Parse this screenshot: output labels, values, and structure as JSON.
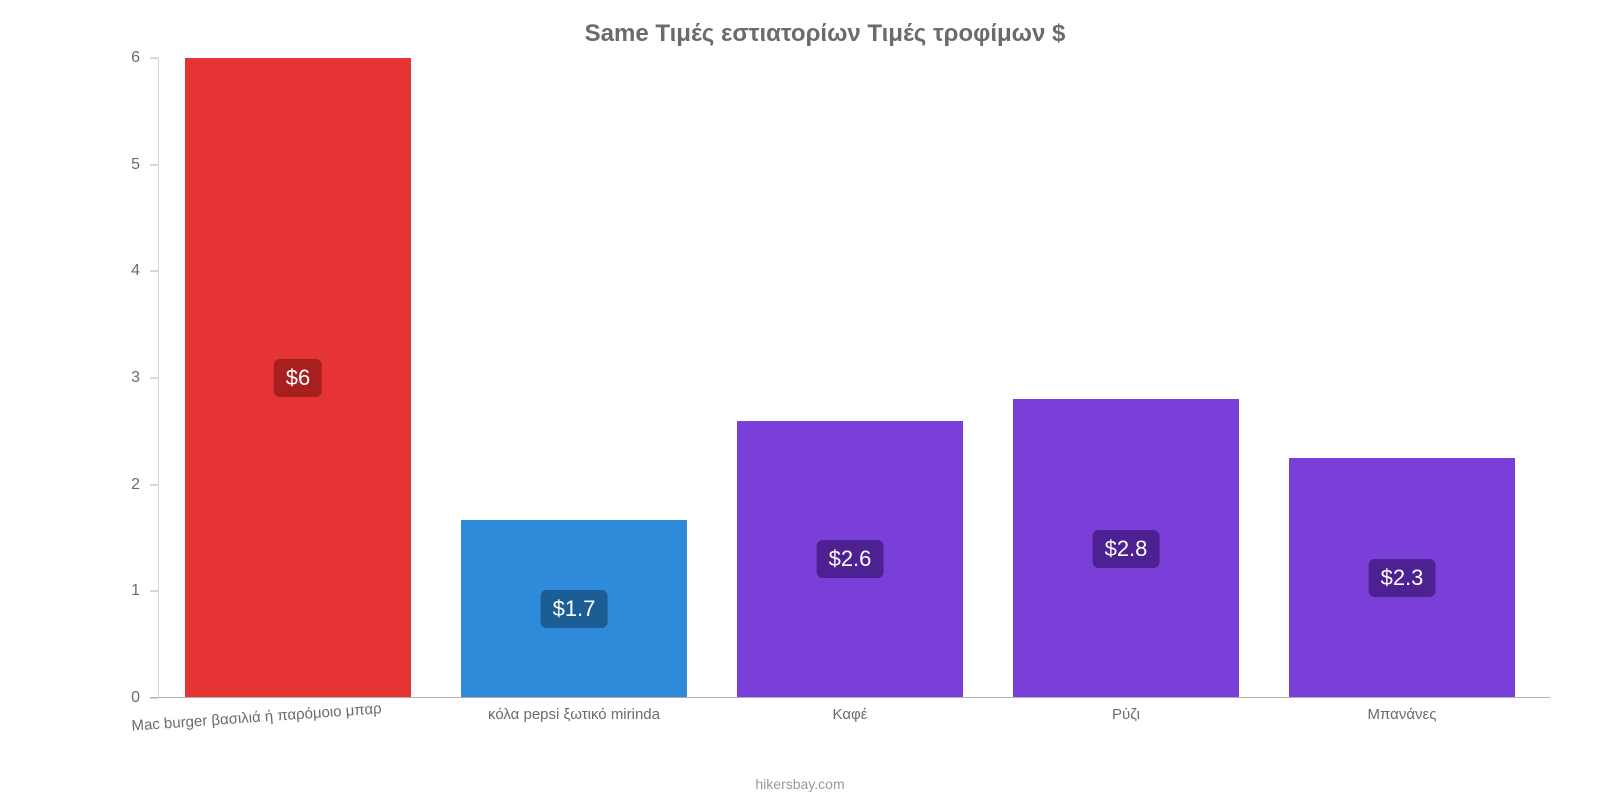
{
  "chart": {
    "type": "bar",
    "title": "Same Τιμές εστιατορίων Τιμές τροφίμων $",
    "title_fontsize": 24,
    "title_color": "#6b6b6b",
    "background_color": "#ffffff",
    "ylim": [
      0,
      6
    ],
    "ytick_step": 1,
    "yticks": [
      0,
      1,
      2,
      3,
      4,
      5,
      6
    ],
    "axis_label_color": "#6b6b6b",
    "axis_label_fontsize": 16,
    "xlabel_fontsize": 15,
    "bar_width_ratio": 0.82,
    "categories": [
      "Mac burger βασιλιά ή παρόμοιο μπαρ",
      "κόλα pepsi ξωτικό mirinda",
      "Καφέ",
      "Ρύζι",
      "Μπανάνες"
    ],
    "values": [
      6,
      1.67,
      2.6,
      2.8,
      2.25
    ],
    "value_labels": [
      "$6",
      "$1.7",
      "$2.6",
      "$2.8",
      "$2.3"
    ],
    "bar_colors": [
      "#e63434",
      "#2f8ad9",
      "#7b3fd9",
      "#7b3fd9",
      "#7b3fd9"
    ],
    "label_bg_colors": [
      "#a81f1f",
      "#1c5d94",
      "#4d2191",
      "#4d2191",
      "#4d2191"
    ],
    "value_label_fontsize": 22,
    "value_label_color": "#ffffff",
    "x_label_rotated_indices": [
      0
    ],
    "attribution": "hikersbay.com",
    "attribution_color": "#9a9a9a",
    "attribution_fontsize": 14
  }
}
